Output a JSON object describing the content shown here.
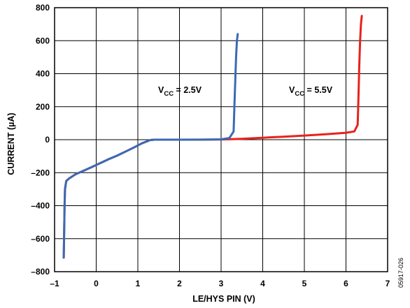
{
  "chart_data": {
    "type": "line",
    "xlabel": "LE/HYS PIN (V)",
    "ylabel": "CURRENT (µA)",
    "xlim": [
      -1,
      7
    ],
    "ylim": [
      -800,
      800
    ],
    "x_ticks": [
      "–1",
      "0",
      "1",
      "2",
      "3",
      "4",
      "5",
      "6",
      "7"
    ],
    "y_ticks": [
      "800",
      "600",
      "400",
      "200",
      "0",
      "–200",
      "–400",
      "–600",
      "–800"
    ],
    "grid": true,
    "side_label": "05917-026",
    "series": [
      {
        "name": "VCC = 2.5V",
        "label_main": "V",
        "label_sub": "CC",
        "label_rest": " = 2.5V",
        "color": "#3a6ab5",
        "x": [
          -0.78,
          -0.77,
          -0.76,
          -0.75,
          -0.72,
          -0.65,
          -0.5,
          -0.3,
          -0.1,
          0.1,
          0.3,
          0.5,
          0.7,
          0.9,
          1.1,
          1.3,
          1.4,
          2.0,
          2.5,
          3.0,
          3.2,
          3.3,
          3.32,
          3.34,
          3.36,
          3.38,
          3.4
        ],
        "y": [
          -715,
          -560,
          -400,
          -300,
          -250,
          -235,
          -210,
          -188,
          -165,
          -142,
          -118,
          -97,
          -73,
          -48,
          -22,
          -2,
          0,
          0,
          0,
          2,
          10,
          50,
          200,
          350,
          500,
          600,
          640
        ]
      },
      {
        "name": "VCC = 5.5V",
        "label_main": "V",
        "label_sub": "CC",
        "label_rest": " = 5.5V",
        "color": "#e8221c",
        "x": [
          -0.78,
          -0.77,
          -0.76,
          -0.75,
          -0.72,
          -0.65,
          -0.5,
          -0.3,
          -0.1,
          0.1,
          0.3,
          0.5,
          0.7,
          0.9,
          1.1,
          1.3,
          1.4,
          2.0,
          3.0,
          3.5,
          4.0,
          4.5,
          5.0,
          5.5,
          6.0,
          6.2,
          6.28,
          6.3,
          6.32,
          6.34,
          6.36,
          6.38
        ],
        "y": [
          -715,
          -560,
          -400,
          -300,
          -250,
          -235,
          -210,
          -188,
          -165,
          -142,
          -118,
          -97,
          -73,
          -48,
          -22,
          -2,
          0,
          0,
          1,
          5,
          12,
          18,
          25,
          33,
          42,
          50,
          90,
          250,
          450,
          600,
          700,
          750
        ]
      }
    ]
  }
}
